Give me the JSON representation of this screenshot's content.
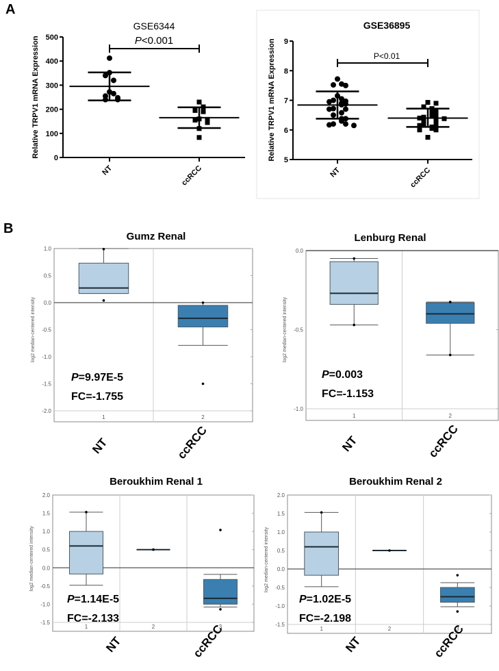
{
  "panel_labels": [
    "A",
    "B"
  ],
  "chart_data": [
    {
      "type": "scatter",
      "title": "GSE6344",
      "ylabel": "Relative TRPV1 mRNA Expression",
      "categories": [
        "NT",
        "ccRCC"
      ],
      "ylim": [
        0,
        500
      ],
      "yticks": [
        0,
        100,
        200,
        300,
        400,
        500
      ],
      "annotation": {
        "prefix": "P",
        "text": "<0.001"
      },
      "series": [
        {
          "category": "NT",
          "marker": "circle",
          "values": [
            412,
            352,
            340,
            320,
            272,
            265,
            255,
            248,
            240,
            240
          ],
          "mean": 295,
          "sd_low": 237,
          "sd_high": 353
        },
        {
          "category": "ccRCC",
          "marker": "square",
          "values": [
            230,
            210,
            195,
            190,
            160,
            158,
            155,
            145,
            120,
            83
          ],
          "mean": 165,
          "sd_low": 122,
          "sd_high": 208
        }
      ]
    },
    {
      "type": "scatter",
      "title": "GSE36895",
      "ylabel": "Relative TRPV1 mRNA Expression",
      "categories": [
        "NT",
        "ccRCC"
      ],
      "ylim": [
        5,
        9
      ],
      "yticks": [
        5,
        6,
        7,
        8,
        9
      ],
      "annotation": {
        "prefix": "",
        "text": "P<0.01"
      },
      "series": [
        {
          "category": "NT",
          "marker": "circle",
          "values": [
            7.72,
            7.55,
            7.5,
            7.52,
            7.15,
            7.05,
            7.0,
            6.95,
            6.97,
            6.9,
            6.88,
            6.85,
            6.7,
            6.72,
            6.7,
            6.58,
            6.5,
            6.38,
            6.38,
            6.3,
            6.2,
            6.15,
            6.17,
            6.2
          ],
          "mean": 6.84,
          "sd_low": 6.38,
          "sd_high": 7.3
        },
        {
          "category": "ccRCC",
          "marker": "square",
          "values": [
            6.93,
            6.9,
            6.78,
            6.72,
            6.65,
            6.6,
            6.55,
            6.5,
            6.43,
            6.4,
            6.4,
            6.38,
            6.35,
            6.3,
            6.2,
            6.18,
            6.15,
            6.1,
            6.1,
            6.05,
            6.0,
            6.0,
            5.75
          ],
          "mean": 6.4,
          "sd_low": 6.1,
          "sd_high": 6.72
        }
      ]
    },
    {
      "type": "box",
      "title": "Gumz Renal",
      "ylabel": "log2 median-centered intensity",
      "ylim": [
        -2.0,
        1.0
      ],
      "yticks": [
        "1.0",
        "0.5",
        "0.0",
        "-0.5",
        "-1.0",
        "-1.5",
        "-2.0"
      ],
      "category_numbers": [
        "1",
        "2"
      ],
      "group_labels": [
        "NT",
        "ccRCC"
      ],
      "p_label": "P",
      "p_value": "=9.97E-5",
      "fc": "FC=-1.755",
      "boxes": [
        {
          "min": 0.17,
          "q1": 0.17,
          "median": 0.27,
          "q3": 0.73,
          "max": 1.0,
          "points": [
            0.99,
            0.04
          ],
          "color": "#b8d0e3"
        },
        {
          "min": -0.79,
          "q1": -0.45,
          "median": -0.29,
          "q3": -0.05,
          "max": 0.0,
          "points": [
            0.0,
            -1.5
          ],
          "color": "#3a7fb0"
        }
      ]
    },
    {
      "type": "box",
      "title": "Lenburg Renal",
      "ylabel": "log2 median-centered intensity",
      "ylim": [
        -1.0,
        0.0
      ],
      "yticks": [
        "0.0",
        "-0.5",
        "-1.0"
      ],
      "category_numbers": [
        "1",
        "2"
      ],
      "group_labels": [
        "NT",
        "ccRCC"
      ],
      "p_label": "P",
      "p_value": "=0.003",
      "fc": "FC=-1.153",
      "boxes": [
        {
          "min": -0.47,
          "q1": -0.34,
          "median": -0.27,
          "q3": -0.07,
          "max": -0.05,
          "points": [
            -0.05,
            -0.47
          ],
          "color": "#b8d0e3"
        },
        {
          "min": -0.66,
          "q1": -0.46,
          "median": -0.4,
          "q3": -0.33,
          "max": -0.325,
          "points": [
            -0.325,
            -0.66
          ],
          "color": "#3a7fb0"
        }
      ]
    },
    {
      "type": "box",
      "title": "Beroukhim Renal 1",
      "ylabel": "log2 median-centered intensity",
      "ylim": [
        -1.5,
        2.0
      ],
      "yticks": [
        "2.0",
        "1.5",
        "1.0",
        "0.5",
        "0.0",
        "-0.5",
        "-1.0",
        "-1.5"
      ],
      "category_numbers": [
        "1",
        "2",
        "3"
      ],
      "group_labels": [
        "NT",
        "ccRCC"
      ],
      "p_label": "P",
      "p_value": "=1.14E-5",
      "fc": "FC=-2.133",
      "boxes": [
        {
          "min": -0.48,
          "q1": -0.17,
          "median": 0.6,
          "q3": 1.0,
          "max": 1.53,
          "points": [
            1.53
          ],
          "color": "#b8d0e3"
        },
        {
          "min": 0.5,
          "q1": 0.5,
          "median": 0.5,
          "q3": 0.5,
          "max": 0.5,
          "points": [
            0.5
          ],
          "color": "#b8d0e3"
        },
        {
          "min": -1.08,
          "q1": -1.0,
          "median": -0.84,
          "q3": -0.32,
          "max": -0.18,
          "points": [
            1.04,
            -1.14
          ],
          "color": "#3a7fb0"
        }
      ]
    },
    {
      "type": "box",
      "title": "Beroukhim Renal 2",
      "ylabel": "log2 median-centered intensity",
      "ylim": [
        -1.5,
        2.0
      ],
      "yticks": [
        "2.0",
        "1.5",
        "1.0",
        "0.5",
        "0.0",
        "-0.5",
        "-1.0",
        "-1.5"
      ],
      "category_numbers": [
        "1",
        "2",
        "3"
      ],
      "group_labels": [
        "NT",
        "ccRCC"
      ],
      "p_label": "P",
      "p_value": "=1.02E-5",
      "fc": "FC=-2.198",
      "boxes": [
        {
          "min": -0.48,
          "q1": -0.17,
          "median": 0.6,
          "q3": 1.0,
          "max": 1.53,
          "points": [
            1.53
          ],
          "color": "#b8d0e3"
        },
        {
          "min": 0.5,
          "q1": 0.5,
          "median": 0.5,
          "q3": 0.5,
          "max": 0.5,
          "points": [
            0.5
          ],
          "color": "#b8d0e3"
        },
        {
          "min": -1.02,
          "q1": -0.9,
          "median": -0.75,
          "q3": -0.5,
          "max": -0.37,
          "points": [
            -0.17,
            -1.15
          ],
          "color": "#3a7fb0"
        }
      ]
    }
  ]
}
